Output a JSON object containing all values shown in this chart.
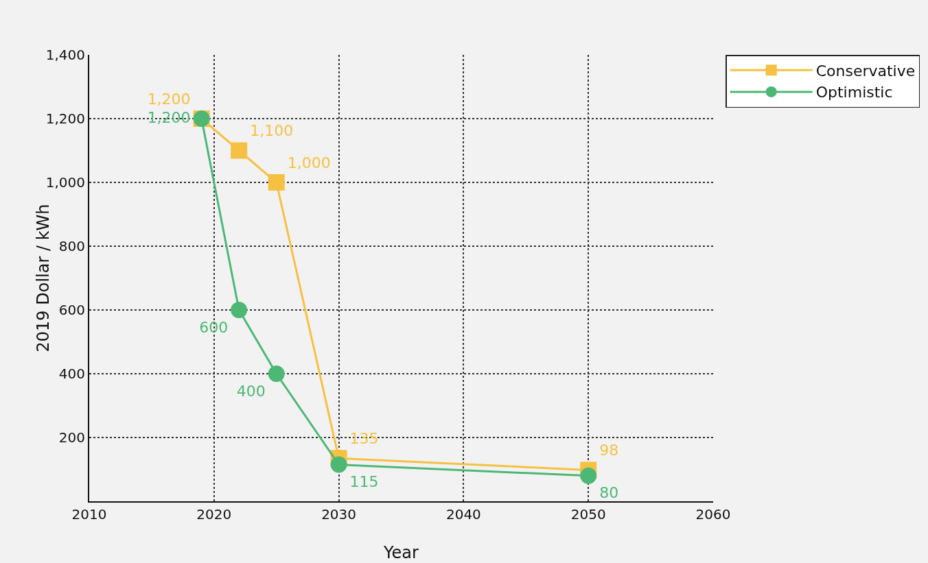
{
  "chart_data": {
    "type": "line",
    "xlabel": "Year",
    "ylabel": "2019 Dollar / kWh",
    "x": [
      2019,
      2022,
      2025,
      2030,
      2050
    ],
    "series": [
      {
        "name": "Conservative",
        "color": "#f6c142",
        "marker": "square",
        "values": [
          1200,
          1100,
          1000,
          135,
          98
        ],
        "value_labels": [
          "1,200",
          "1,100",
          "1,000",
          "135",
          "98"
        ]
      },
      {
        "name": "Optimistic",
        "color": "#4cb874",
        "marker": "circle",
        "values": [
          1200,
          600,
          400,
          115,
          80
        ],
        "value_labels": [
          "1,200",
          "600",
          "400",
          "115",
          "80"
        ]
      }
    ],
    "xlim": [
      2010,
      2060
    ],
    "xticks": [
      2010,
      2020,
      2030,
      2040,
      2050,
      2060
    ],
    "ylim": [
      0,
      1400
    ],
    "yticks": [
      {
        "value": 200,
        "label": "200"
      },
      {
        "value": 400,
        "label": "400"
      },
      {
        "value": 600,
        "label": "600"
      },
      {
        "value": 800,
        "label": "800"
      },
      {
        "value": 1000,
        "label": "1,000"
      },
      {
        "value": 1200,
        "label": "1,200"
      },
      {
        "value": 1400,
        "label": "1,400"
      }
    ],
    "grid": true,
    "legend": "top right",
    "line_style": "solid"
  }
}
